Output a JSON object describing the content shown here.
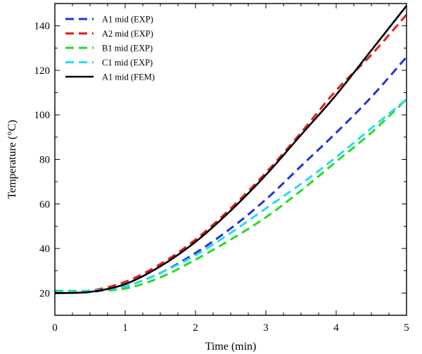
{
  "chart_data": {
    "type": "line",
    "xlabel": "Time (min)",
    "ylabel": "Temperature (°C)",
    "xlim": [
      0,
      5
    ],
    "ylim": [
      10,
      150
    ],
    "xticks": [
      0,
      1,
      2,
      3,
      4,
      5
    ],
    "yticks": [
      20,
      40,
      60,
      80,
      100,
      120,
      140
    ],
    "legend_position": "top-left",
    "grid": false,
    "series": [
      {
        "name": "A1 mid (EXP)",
        "style": "dashed",
        "color": "#2233dd",
        "x": [
          0,
          0.5,
          1,
          1.5,
          2,
          2.5,
          3,
          3.5,
          4,
          4.5,
          5
        ],
        "y": [
          20,
          20.5,
          23,
          29,
          38,
          49,
          62,
          77,
          92,
          108,
          126
        ]
      },
      {
        "name": "A2 mid (EXP)",
        "style": "dashed",
        "color": "#e21e1e",
        "x": [
          0,
          0.5,
          1,
          1.5,
          2,
          2.5,
          3,
          3.5,
          4,
          4.5,
          5
        ],
        "y": [
          20,
          21,
          25,
          33,
          44,
          58,
          74,
          92,
          111,
          127,
          145
        ]
      },
      {
        "name": "B1 mid (EXP)",
        "style": "dashed",
        "color": "#22dd22",
        "x": [
          0,
          0.5,
          1,
          1.5,
          2,
          2.5,
          3,
          3.5,
          4,
          4.5,
          5
        ],
        "y": [
          21,
          21,
          22,
          27,
          35,
          44,
          54,
          66,
          79,
          92,
          107
        ]
      },
      {
        "name": "C1 mid (EXP)",
        "style": "dashed",
        "color": "#22ddee",
        "x": [
          0,
          0.5,
          1,
          1.5,
          2,
          2.5,
          3,
          3.5,
          4,
          4.5,
          5
        ],
        "y": [
          20.5,
          21,
          23,
          29,
          37,
          47,
          58,
          69,
          81,
          94,
          107
        ]
      },
      {
        "name": "A1 mid (FEM)",
        "style": "solid",
        "color": "#000000",
        "x": [
          0,
          0.5,
          1,
          1.5,
          2,
          2.5,
          3,
          3.5,
          4,
          4.5,
          5
        ],
        "y": [
          20,
          20.5,
          24,
          32,
          43,
          57,
          73,
          91,
          109,
          129,
          149
        ]
      }
    ]
  }
}
